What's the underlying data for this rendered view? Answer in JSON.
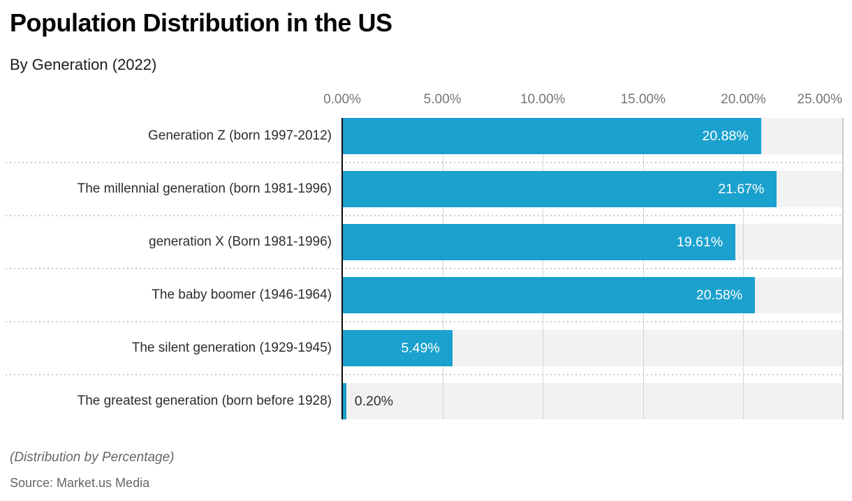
{
  "header": {
    "title": "Population Distribution in the US",
    "subtitle": "By Generation (2022)"
  },
  "footer": {
    "note": "(Distribution by Percentage)",
    "source": "Source: Market.us Media"
  },
  "colors": {
    "bar": "#1BA1CE",
    "track": "#F2F2F2",
    "zero_axis": "#0A0A0A",
    "gridline": "#D4D4D4",
    "separator_dots": "#CBCBCB",
    "axis_label": "#757575",
    "category_label": "#2D2D2D",
    "value_label_inside": "#FFFFFF",
    "value_label_outside": "#2D2D2D",
    "background": "#FFFFFF"
  },
  "chart_data": {
    "type": "bar",
    "orientation": "horizontal",
    "title": "Population Distribution in the US",
    "subtitle": "By Generation (2022)",
    "categories": [
      "Generation Z (born 1997-2012)",
      "The millennial generation (born 1981-1996)",
      "generation X (Born 1981-1996)",
      "The baby boomer (1946-1964)",
      "The silent generation (1929-1945)",
      "The greatest generation (born before 1928)"
    ],
    "values": [
      20.88,
      21.67,
      19.61,
      20.58,
      5.49,
      0.2
    ],
    "value_labels": [
      "20.88%",
      "21.67%",
      "19.61%",
      "20.58%",
      "5.49%",
      "0.20%"
    ],
    "xlim": [
      0,
      25
    ],
    "x_tick_values": [
      0,
      5,
      10,
      15,
      20,
      25
    ],
    "x_tick_labels": [
      "0.00%",
      "5.00%",
      "10.00%",
      "15.00%",
      "20.00%",
      "25.00%"
    ],
    "grid": true,
    "legend": false,
    "note": "(Distribution by Percentage)",
    "source": "Source: Market.us Media"
  }
}
